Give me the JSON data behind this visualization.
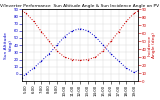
{
  "title": "Solar PV/Inverter Performance  Sun Altitude Angle & Sun Incidence Angle on PV Panels",
  "left_ylabel": "Sun Altitude\n(deg)",
  "right_ylabel": "Incidence\nAngle (deg)",
  "ylim_left": [
    -10,
    90
  ],
  "ylim_right": [
    0,
    90
  ],
  "hours": [
    4.5,
    5,
    6,
    7,
    8,
    9,
    10,
    11,
    12,
    13,
    14,
    15,
    16,
    17,
    18,
    19,
    19.5
  ],
  "sun_altitude": [
    -5,
    0,
    8,
    18,
    28,
    40,
    52,
    60,
    63,
    60,
    52,
    40,
    28,
    18,
    8,
    2,
    5
  ],
  "incidence_angle": [
    88,
    85,
    75,
    62,
    50,
    38,
    30,
    27,
    26,
    27,
    30,
    38,
    50,
    62,
    75,
    85,
    88
  ],
  "altitude_color": "#0000cc",
  "incidence_color": "#cc0000",
  "bg_color": "#ffffff",
  "grid_color": "#cccccc",
  "title_fontsize": 3.2,
  "tick_fontsize": 2.8,
  "label_fontsize": 3.2,
  "xlim": [
    4.5,
    19.5
  ],
  "xtick_hours": [
    5,
    6,
    7,
    8,
    9,
    10,
    11,
    12,
    13,
    14,
    15,
    16,
    17,
    18,
    19
  ],
  "left_yticks": [
    0,
    10,
    20,
    30,
    40,
    50,
    60,
    70,
    80,
    90
  ],
  "right_yticks": [
    0,
    10,
    20,
    30,
    40,
    50,
    60,
    70,
    80,
    90
  ]
}
